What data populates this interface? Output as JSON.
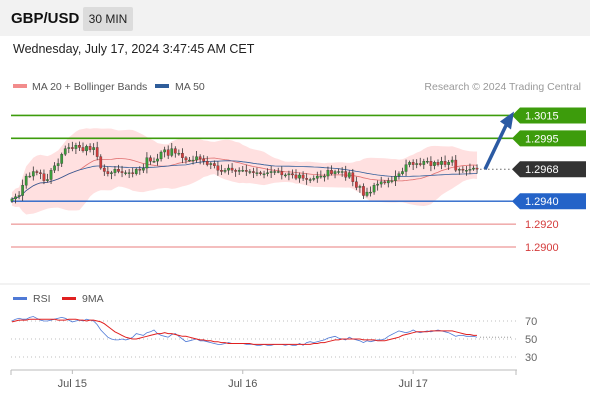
{
  "header": {
    "pair": "GBP/USD",
    "timeframe": "30 MIN",
    "datetime": "Wednesday, July 17, 2024 3:47:45 AM CET"
  },
  "legend": {
    "ma20_label": "MA 20 + Bollinger Bands",
    "ma50_label": "MA 50",
    "credit": "Research © 2024 Trading Central"
  },
  "rsi_legend": {
    "rsi_label": "RSI",
    "ma_label": "9MA"
  },
  "colors": {
    "support": "#e87d7d",
    "resistance": "#3d9c0c",
    "pivot": "#2463c8",
    "price": "#333333",
    "bollinger": "#ffd6d6",
    "ma20": "#e07070",
    "ma50": "#2f5d9a",
    "rsi": "#4f7ad6",
    "rsi_ma": "#e02020",
    "arrow": "#2b5aa3"
  },
  "chart_data": {
    "type": "candlestick",
    "instrument": "GBP/USD",
    "interval": "30 MIN",
    "price_levels": [
      {
        "label": "1.3015",
        "value": 1.3015,
        "kind": "resistance"
      },
      {
        "label": "1.2995",
        "value": 1.2995,
        "kind": "resistance"
      },
      {
        "label": "1.2968",
        "value": 1.2968,
        "kind": "last_price"
      },
      {
        "label": "1.2940",
        "value": 1.294,
        "kind": "pivot"
      },
      {
        "label": "1.2920",
        "value": 1.292,
        "kind": "support"
      },
      {
        "label": "1.2900",
        "value": 1.29,
        "kind": "support"
      }
    ],
    "projection": {
      "from": 1.2968,
      "to": 1.3015,
      "direction": "up"
    },
    "x_ticks": [
      {
        "label": "Jul 15",
        "index": 17
      },
      {
        "label": "Jul 16",
        "index": 65
      },
      {
        "label": "Jul 17",
        "index": 113
      }
    ],
    "price_range": [
      1.2872,
      1.3032
    ],
    "candles_count": 132,
    "close_series": [
      1.2942,
      1.2944,
      1.2945,
      1.2954,
      1.2962,
      1.2962,
      1.2966,
      1.2965,
      1.2964,
      1.2958,
      1.2959,
      1.2967,
      1.2971,
      1.2973,
      1.2981,
      1.2986,
      1.2987,
      1.2986,
      1.2989,
      1.2987,
      1.2984,
      1.2988,
      1.2985,
      1.2987,
      1.2979,
      1.2969,
      1.2966,
      1.2964,
      1.2965,
      1.2968,
      1.2966,
      1.2965,
      1.2965,
      1.2965,
      1.2964,
      1.2968,
      1.2967,
      1.2969,
      1.2978,
      1.2975,
      1.2975,
      1.2977,
      1.2983,
      1.2985,
      1.298,
      1.2986,
      1.2982,
      1.2982,
      1.2978,
      1.2976,
      1.2976,
      1.2976,
      1.2979,
      1.2977,
      1.2975,
      1.2972,
      1.2973,
      1.2971,
      1.2967,
      1.2966,
      1.2967,
      1.2969,
      1.2967,
      1.2966,
      1.2967,
      1.2967,
      1.2966,
      1.2966,
      1.2965,
      1.2965,
      1.2964,
      1.2964,
      1.2965,
      1.2966,
      1.2966,
      1.2966,
      1.2963,
      1.2963,
      1.2964,
      1.2963,
      1.296,
      1.2963,
      1.296,
      1.2959,
      1.2959,
      1.296,
      1.2962,
      1.2962,
      1.2962,
      1.2967,
      1.2964,
      1.2966,
      1.2966,
      1.2966,
      1.2961,
      1.2965,
      1.2957,
      1.2952,
      1.2953,
      1.2945,
      1.2948,
      1.2948,
      1.2954,
      1.2955,
      1.2957,
      1.2956,
      1.2958,
      1.2958,
      1.2962,
      1.2964,
      1.2966,
      1.2972,
      1.2974,
      1.2972,
      1.2973,
      1.2972,
      1.2975,
      1.2975,
      1.2971,
      1.2974,
      1.2972,
      1.2975,
      1.2972,
      1.2974,
      1.2976,
      1.2967,
      1.2968,
      1.2967,
      1.2967,
      1.2968,
      1.2969,
      1.2968
    ],
    "rsi": {
      "levels": [
        70,
        50,
        30
      ],
      "range": [
        20,
        80
      ],
      "values": [
        70,
        72,
        73,
        72,
        72,
        74,
        75,
        73,
        71,
        70,
        70,
        71,
        72,
        73,
        74,
        73,
        71,
        69,
        70,
        71,
        70,
        72,
        71,
        70,
        66,
        60,
        56,
        52,
        50,
        49,
        49,
        50,
        49,
        50,
        52,
        56,
        55,
        54,
        57,
        58,
        60,
        56,
        54,
        53,
        52,
        55,
        56,
        53,
        50,
        47,
        48,
        49,
        50,
        48,
        48,
        47,
        46,
        45,
        44,
        44,
        45,
        46,
        45,
        45,
        45,
        45,
        44,
        44,
        44,
        43,
        43,
        44,
        43,
        43,
        44,
        44,
        44,
        43,
        44,
        43,
        43,
        45,
        43,
        46,
        47,
        46,
        47,
        48,
        49,
        51,
        52,
        53,
        51,
        50,
        49,
        52,
        50,
        49,
        48,
        46,
        48,
        47,
        48,
        49,
        49,
        50,
        53,
        55,
        57,
        59,
        58,
        57,
        58,
        60,
        58,
        57,
        58,
        59,
        58,
        59,
        60,
        59,
        58,
        57,
        55,
        53,
        54,
        54,
        53,
        53,
        53,
        52
      ],
      "ma9": [
        69,
        70,
        71,
        71,
        71,
        72,
        72,
        72,
        72,
        72,
        72,
        72,
        72,
        71,
        71,
        71,
        72,
        72,
        72,
        71,
        71,
        70,
        71,
        71,
        70,
        69,
        67,
        64,
        61,
        58,
        56,
        54,
        52,
        51,
        50,
        50,
        51,
        52,
        53,
        54,
        55,
        56,
        56,
        57,
        56,
        56,
        55,
        54,
        53,
        53,
        52,
        51,
        50,
        49,
        49,
        48,
        48,
        47,
        47,
        46,
        46,
        45,
        45,
        45,
        45,
        45,
        45,
        45,
        44,
        44,
        44,
        44,
        44,
        44,
        44,
        44,
        44,
        44,
        44,
        44,
        44,
        44,
        44,
        44,
        44,
        45,
        45,
        46,
        46,
        47,
        48,
        49,
        49,
        50,
        50,
        50,
        50,
        50,
        50,
        49,
        49,
        49,
        49,
        48,
        48,
        48,
        49,
        50,
        51,
        52,
        54,
        55,
        56,
        57,
        58,
        58,
        58,
        58,
        59,
        59,
        59,
        59,
        59,
        59,
        59,
        58,
        57,
        56,
        55,
        55,
        54,
        54
      ]
    }
  }
}
